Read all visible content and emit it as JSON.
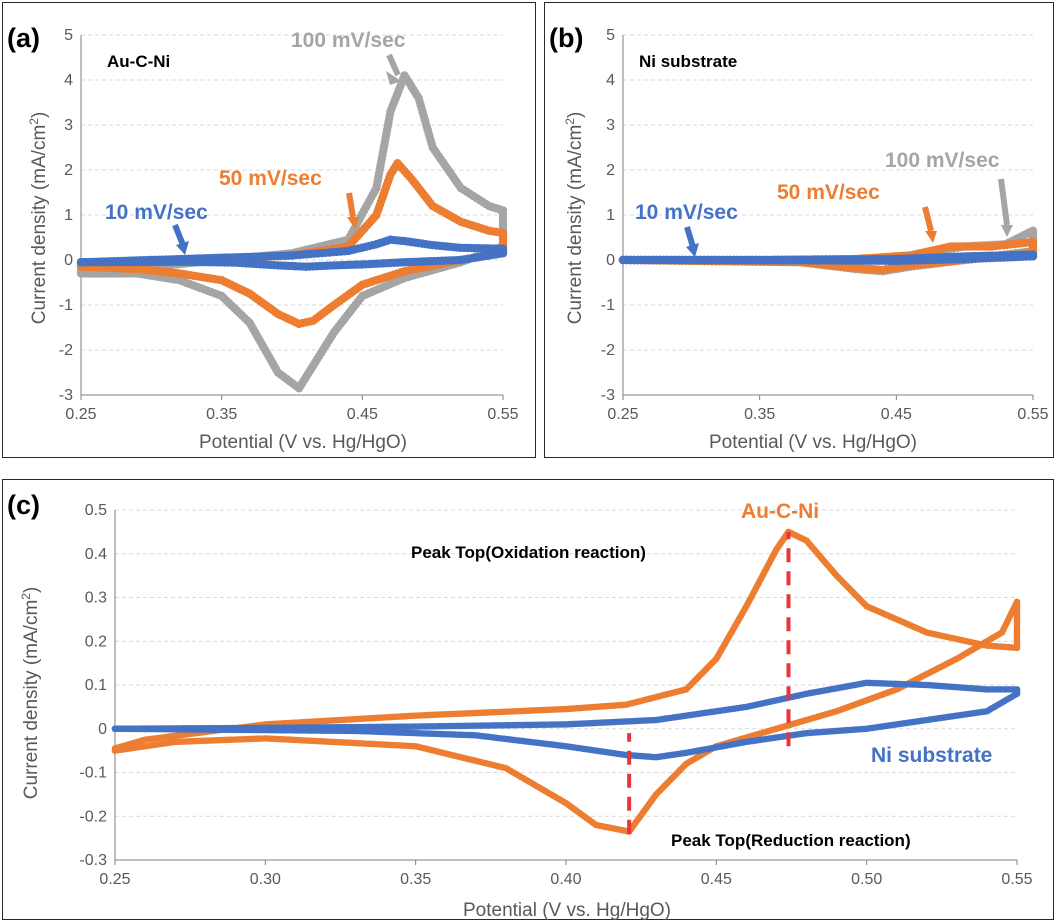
{
  "colors": {
    "gray": "#a5a5a5",
    "orange": "#ed7d31",
    "blue": "#4472c4",
    "red_dash": "#e8343a"
  },
  "chart_data": [
    {
      "panel": "(a)",
      "type": "scatter",
      "title": "Au-C-Ni",
      "xlabel": "Potential (V vs. Hg/HgO)",
      "ylabel_main": "Current density (mA/cm",
      "ylabel_sup": "2",
      "ylabel_end": ")",
      "xlim": [
        0.25,
        0.55
      ],
      "ylim": [
        -3,
        5
      ],
      "xticks": [
        "0.25",
        "0.35",
        "0.45",
        "0.55"
      ],
      "yticks": [
        "-3",
        "-2",
        "-1",
        "0",
        "1",
        "2",
        "3",
        "4",
        "5"
      ],
      "grid": true,
      "annotations": [
        {
          "text": "100 mV/sec",
          "color": "gray"
        },
        {
          "text": "50 mV/sec",
          "color": "orange"
        },
        {
          "text": "10 mV/sec",
          "color": "blue"
        }
      ],
      "series": [
        {
          "color": "gray",
          "anodic": [
            [
              0.25,
              -0.25
            ],
            [
              0.3,
              -0.15
            ],
            [
              0.35,
              0.0
            ],
            [
              0.4,
              0.15
            ],
            [
              0.44,
              0.45
            ],
            [
              0.46,
              1.6
            ],
            [
              0.47,
              3.3
            ],
            [
              0.48,
              4.1
            ],
            [
              0.49,
              3.6
            ],
            [
              0.5,
              2.5
            ],
            [
              0.52,
              1.6
            ],
            [
              0.54,
              1.2
            ],
            [
              0.55,
              1.1
            ]
          ],
          "cathodic": [
            [
              0.55,
              0.3
            ],
            [
              0.52,
              -0.05
            ],
            [
              0.48,
              -0.4
            ],
            [
              0.45,
              -0.8
            ],
            [
              0.43,
              -1.6
            ],
            [
              0.41,
              -2.6
            ],
            [
              0.405,
              -2.85
            ],
            [
              0.39,
              -2.5
            ],
            [
              0.37,
              -1.4
            ],
            [
              0.35,
              -0.8
            ],
            [
              0.32,
              -0.45
            ],
            [
              0.29,
              -0.3
            ],
            [
              0.25,
              -0.3
            ]
          ]
        },
        {
          "color": "orange",
          "anodic": [
            [
              0.25,
              -0.12
            ],
            [
              0.3,
              -0.05
            ],
            [
              0.35,
              0.03
            ],
            [
              0.4,
              0.1
            ],
            [
              0.44,
              0.3
            ],
            [
              0.46,
              1.0
            ],
            [
              0.47,
              1.9
            ],
            [
              0.475,
              2.15
            ],
            [
              0.485,
              1.8
            ],
            [
              0.5,
              1.2
            ],
            [
              0.52,
              0.85
            ],
            [
              0.54,
              0.65
            ],
            [
              0.55,
              0.6
            ]
          ],
          "cathodic": [
            [
              0.55,
              0.15
            ],
            [
              0.52,
              0.0
            ],
            [
              0.48,
              -0.25
            ],
            [
              0.45,
              -0.55
            ],
            [
              0.43,
              -1.0
            ],
            [
              0.415,
              -1.35
            ],
            [
              0.405,
              -1.42
            ],
            [
              0.39,
              -1.2
            ],
            [
              0.37,
              -0.75
            ],
            [
              0.35,
              -0.45
            ],
            [
              0.32,
              -0.3
            ],
            [
              0.29,
              -0.2
            ],
            [
              0.25,
              -0.15
            ]
          ]
        },
        {
          "color": "blue",
          "anodic": [
            [
              0.25,
              -0.05
            ],
            [
              0.3,
              0.0
            ],
            [
              0.35,
              0.05
            ],
            [
              0.4,
              0.1
            ],
            [
              0.44,
              0.2
            ],
            [
              0.46,
              0.35
            ],
            [
              0.47,
              0.45
            ],
            [
              0.48,
              0.42
            ],
            [
              0.5,
              0.33
            ],
            [
              0.52,
              0.27
            ],
            [
              0.55,
              0.25
            ]
          ],
          "cathodic": [
            [
              0.55,
              0.15
            ],
            [
              0.52,
              0.0
            ],
            [
              0.48,
              -0.05
            ],
            [
              0.45,
              -0.1
            ],
            [
              0.43,
              -0.12
            ],
            [
              0.41,
              -0.15
            ],
            [
              0.39,
              -0.12
            ],
            [
              0.36,
              -0.06
            ],
            [
              0.32,
              -0.04
            ],
            [
              0.25,
              -0.05
            ]
          ]
        }
      ]
    },
    {
      "panel": "(b)",
      "type": "scatter",
      "title": "Ni substrate",
      "xlabel": "Potential (V vs. Hg/HgO)",
      "ylabel_main": "Current density (mA/cm",
      "ylabel_sup": "2",
      "ylabel_end": ")",
      "xlim": [
        0.25,
        0.55
      ],
      "ylim": [
        -3,
        5
      ],
      "xticks": [
        "0.25",
        "0.35",
        "0.45",
        "0.55"
      ],
      "yticks": [
        "-3",
        "-2",
        "-1",
        "0",
        "1",
        "2",
        "3",
        "4",
        "5"
      ],
      "grid": true,
      "annotations": [
        {
          "text": "100 mV/sec",
          "color": "gray"
        },
        {
          "text": "50 mV/sec",
          "color": "orange"
        },
        {
          "text": "10 mV/sec",
          "color": "blue"
        }
      ],
      "series": [
        {
          "color": "gray",
          "anodic": [
            [
              0.25,
              0.0
            ],
            [
              0.35,
              0.0
            ],
            [
              0.42,
              0.02
            ],
            [
              0.46,
              0.1
            ],
            [
              0.5,
              0.3
            ],
            [
              0.53,
              0.35
            ],
            [
              0.55,
              0.65
            ]
          ],
          "cathodic": [
            [
              0.55,
              0.2
            ],
            [
              0.5,
              0.0
            ],
            [
              0.46,
              -0.15
            ],
            [
              0.44,
              -0.25
            ],
            [
              0.42,
              -0.2
            ],
            [
              0.38,
              -0.05
            ],
            [
              0.25,
              0.0
            ]
          ]
        },
        {
          "color": "orange",
          "anodic": [
            [
              0.25,
              0.0
            ],
            [
              0.35,
              0.0
            ],
            [
              0.42,
              0.02
            ],
            [
              0.46,
              0.1
            ],
            [
              0.49,
              0.3
            ],
            [
              0.52,
              0.3
            ],
            [
              0.55,
              0.4
            ]
          ],
          "cathodic": [
            [
              0.55,
              0.15
            ],
            [
              0.5,
              0.0
            ],
            [
              0.46,
              -0.12
            ],
            [
              0.44,
              -0.22
            ],
            [
              0.42,
              -0.18
            ],
            [
              0.38,
              -0.05
            ],
            [
              0.25,
              0.0
            ]
          ]
        },
        {
          "color": "blue",
          "anodic": [
            [
              0.25,
              0.0
            ],
            [
              0.35,
              0.0
            ],
            [
              0.45,
              0.02
            ],
            [
              0.5,
              0.08
            ],
            [
              0.55,
              0.12
            ]
          ],
          "cathodic": [
            [
              0.55,
              0.08
            ],
            [
              0.5,
              0.02
            ],
            [
              0.45,
              -0.02
            ],
            [
              0.4,
              -0.01
            ],
            [
              0.25,
              0.0
            ]
          ]
        }
      ]
    },
    {
      "panel": "(c)",
      "type": "scatter",
      "xlabel": "Potential (V vs. Hg/HgO)",
      "ylabel_main": "Current density (mA/cm",
      "ylabel_sup": "2",
      "ylabel_end": ")",
      "xlim": [
        0.25,
        0.55
      ],
      "ylim": [
        -0.3,
        0.5
      ],
      "xticks": [
        "0.25",
        "0.30",
        "0.35",
        "0.40",
        "0.45",
        "0.50",
        "0.55"
      ],
      "yticks": [
        "-0.3",
        "-0.2",
        "-0.1",
        "0",
        "0.1",
        "0.2",
        "0.3",
        "0.4",
        "0.5"
      ],
      "grid": true,
      "series_labels": [
        {
          "text": "Au-C-Ni",
          "color": "orange"
        },
        {
          "text": "Ni substrate",
          "color": "blue"
        }
      ],
      "annotations": [
        {
          "text": "Peak Top(Oxidation reaction)",
          "dash_x": 0.474,
          "dash_y": [
            -0.04,
            0.45
          ]
        },
        {
          "text": "Peak Top(Reduction reaction)",
          "dash_x": 0.421,
          "dash_y": [
            -0.24,
            -0.01
          ]
        }
      ],
      "series": [
        {
          "color": "orange",
          "anodic": [
            [
              0.25,
              -0.045
            ],
            [
              0.26,
              -0.025
            ],
            [
              0.3,
              0.01
            ],
            [
              0.35,
              0.03
            ],
            [
              0.4,
              0.045
            ],
            [
              0.42,
              0.055
            ],
            [
              0.44,
              0.09
            ],
            [
              0.45,
              0.16
            ],
            [
              0.46,
              0.28
            ],
            [
              0.47,
              0.41
            ],
            [
              0.474,
              0.45
            ],
            [
              0.48,
              0.43
            ],
            [
              0.49,
              0.35
            ],
            [
              0.5,
              0.28
            ],
            [
              0.52,
              0.22
            ],
            [
              0.54,
              0.19
            ],
            [
              0.55,
              0.185
            ]
          ],
          "cathodic": [
            [
              0.55,
              0.29
            ],
            [
              0.545,
              0.22
            ],
            [
              0.53,
              0.16
            ],
            [
              0.51,
              0.09
            ],
            [
              0.49,
              0.04
            ],
            [
              0.47,
              0.0
            ],
            [
              0.45,
              -0.04
            ],
            [
              0.44,
              -0.08
            ],
            [
              0.43,
              -0.15
            ],
            [
              0.421,
              -0.235
            ],
            [
              0.41,
              -0.22
            ],
            [
              0.4,
              -0.17
            ],
            [
              0.38,
              -0.09
            ],
            [
              0.35,
              -0.04
            ],
            [
              0.3,
              -0.022
            ],
            [
              0.27,
              -0.03
            ],
            [
              0.25,
              -0.05
            ]
          ]
        },
        {
          "color": "blue",
          "anodic": [
            [
              0.25,
              0.0
            ],
            [
              0.3,
              0.002
            ],
            [
              0.35,
              0.005
            ],
            [
              0.4,
              0.01
            ],
            [
              0.43,
              0.02
            ],
            [
              0.46,
              0.05
            ],
            [
              0.48,
              0.08
            ],
            [
              0.5,
              0.105
            ],
            [
              0.52,
              0.1
            ],
            [
              0.54,
              0.09
            ],
            [
              0.55,
              0.09
            ]
          ],
          "cathodic": [
            [
              0.55,
              0.08
            ],
            [
              0.54,
              0.04
            ],
            [
              0.52,
              0.02
            ],
            [
              0.5,
              0.0
            ],
            [
              0.48,
              -0.01
            ],
            [
              0.46,
              -0.03
            ],
            [
              0.44,
              -0.055
            ],
            [
              0.43,
              -0.065
            ],
            [
              0.42,
              -0.06
            ],
            [
              0.4,
              -0.04
            ],
            [
              0.37,
              -0.015
            ],
            [
              0.33,
              -0.005
            ],
            [
              0.25,
              0.0
            ]
          ]
        }
      ]
    }
  ],
  "figure_labels": [
    "(a)",
    "(b)",
    "(c)"
  ]
}
